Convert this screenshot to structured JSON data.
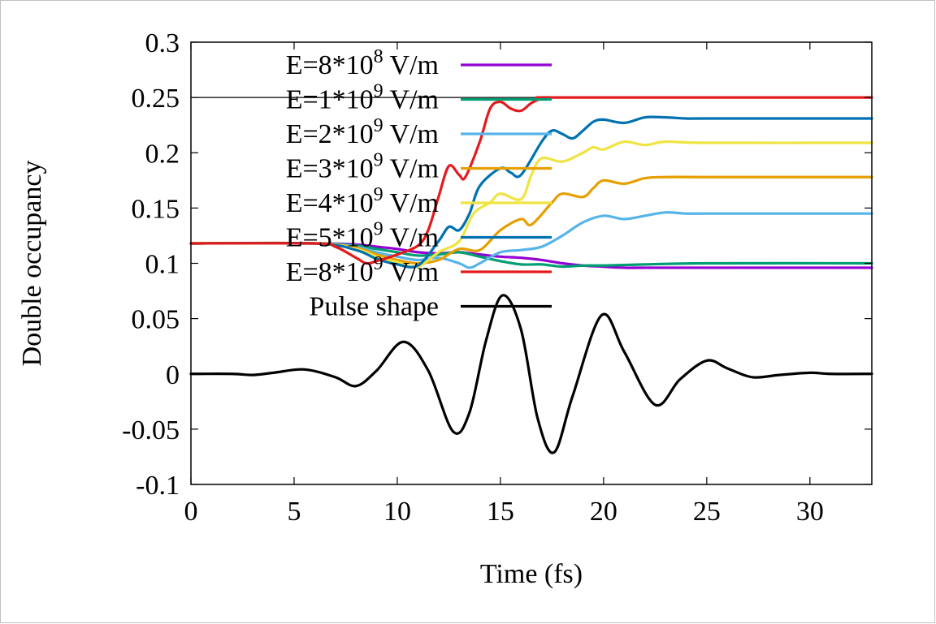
{
  "chart_data": {
    "type": "line",
    "xlabel": "Time (fs)",
    "ylabel": "Double occupancy",
    "xlim": [
      0,
      33
    ],
    "ylim": [
      -0.1,
      0.3
    ],
    "xticks": [
      0,
      5,
      10,
      15,
      20,
      25,
      30
    ],
    "yticks": [
      -0.1,
      -0.05,
      0,
      0.05,
      0.1,
      0.15,
      0.2,
      0.25,
      0.3
    ],
    "grid": false,
    "legend_position": "top-left inside",
    "reference_line": {
      "y": 0.25,
      "color": "#000000"
    },
    "series": [
      {
        "name": "E=8*10^8 V/m",
        "label_base": "E=8*10",
        "label_exp": "8",
        "label_unit": " V/m",
        "color": "#9400d3",
        "points": [
          [
            0,
            0.118
          ],
          [
            6,
            0.118
          ],
          [
            8,
            0.117
          ],
          [
            9,
            0.115
          ],
          [
            10,
            0.113
          ],
          [
            11,
            0.11
          ],
          [
            12,
            0.109
          ],
          [
            13,
            0.11
          ],
          [
            14,
            0.108
          ],
          [
            15,
            0.106
          ],
          [
            16,
            0.105
          ],
          [
            17,
            0.103
          ],
          [
            18,
            0.1
          ],
          [
            19,
            0.098
          ],
          [
            20,
            0.097
          ],
          [
            21,
            0.096
          ],
          [
            22,
            0.096
          ],
          [
            25,
            0.096
          ],
          [
            33,
            0.096
          ]
        ]
      },
      {
        "name": "E=1*10^9 V/m",
        "label_base": "E=1*10",
        "label_exp": "9",
        "label_unit": " V/m",
        "color": "#009e73",
        "points": [
          [
            0,
            0.118
          ],
          [
            6,
            0.118
          ],
          [
            8,
            0.116
          ],
          [
            9,
            0.113
          ],
          [
            10,
            0.11
          ],
          [
            11,
            0.107
          ],
          [
            12,
            0.108
          ],
          [
            13,
            0.11
          ],
          [
            14,
            0.106
          ],
          [
            15,
            0.102
          ],
          [
            16,
            0.099
          ],
          [
            17,
            0.099
          ],
          [
            18,
            0.097
          ],
          [
            19,
            0.098
          ],
          [
            20,
            0.098
          ],
          [
            22,
            0.099
          ],
          [
            25,
            0.1
          ],
          [
            33,
            0.1
          ]
        ]
      },
      {
        "name": "E=2*10^9 V/m",
        "label_base": "E=2*10",
        "label_exp": "9",
        "label_unit": " V/m",
        "color": "#56b4e9",
        "points": [
          [
            0,
            0.118
          ],
          [
            6,
            0.118
          ],
          [
            8,
            0.115
          ],
          [
            9,
            0.11
          ],
          [
            10,
            0.106
          ],
          [
            11,
            0.103
          ],
          [
            12,
            0.105
          ],
          [
            13,
            0.1
          ],
          [
            13.5,
            0.096
          ],
          [
            14,
            0.1
          ],
          [
            15,
            0.11
          ],
          [
            16,
            0.112
          ],
          [
            17,
            0.115
          ],
          [
            18,
            0.125
          ],
          [
            19,
            0.137
          ],
          [
            20,
            0.143
          ],
          [
            21,
            0.14
          ],
          [
            22,
            0.143
          ],
          [
            23,
            0.146
          ],
          [
            24,
            0.145
          ],
          [
            25,
            0.145
          ],
          [
            33,
            0.145
          ]
        ]
      },
      {
        "name": "E=3*10^9 V/m",
        "label_base": "E=3*10",
        "label_exp": "9",
        "label_unit": " V/m",
        "color": "#e69f00",
        "points": [
          [
            0,
            0.118
          ],
          [
            6,
            0.118
          ],
          [
            8,
            0.114
          ],
          [
            9,
            0.108
          ],
          [
            10,
            0.103
          ],
          [
            11,
            0.1
          ],
          [
            12,
            0.103
          ],
          [
            13,
            0.113
          ],
          [
            14,
            0.112
          ],
          [
            15,
            0.13
          ],
          [
            16,
            0.14
          ],
          [
            16.5,
            0.135
          ],
          [
            17.5,
            0.155
          ],
          [
            18,
            0.163
          ],
          [
            19,
            0.16
          ],
          [
            19.5,
            0.168
          ],
          [
            20,
            0.175
          ],
          [
            21,
            0.172
          ],
          [
            22,
            0.177
          ],
          [
            23,
            0.178
          ],
          [
            25,
            0.178
          ],
          [
            33,
            0.178
          ]
        ]
      },
      {
        "name": "E=4*10^9 V/m",
        "label_base": "E=4*10",
        "label_exp": "9",
        "label_unit": " V/m",
        "color": "#f0e442",
        "points": [
          [
            0,
            0.118
          ],
          [
            6,
            0.118
          ],
          [
            8,
            0.113
          ],
          [
            9,
            0.106
          ],
          [
            10,
            0.101
          ],
          [
            11,
            0.097
          ],
          [
            12,
            0.11
          ],
          [
            13,
            0.12
          ],
          [
            13.7,
            0.145
          ],
          [
            14.5,
            0.155
          ],
          [
            15,
            0.163
          ],
          [
            16,
            0.158
          ],
          [
            16.5,
            0.18
          ],
          [
            17,
            0.195
          ],
          [
            18,
            0.192
          ],
          [
            19,
            0.2
          ],
          [
            19.5,
            0.205
          ],
          [
            20,
            0.203
          ],
          [
            21,
            0.21
          ],
          [
            22,
            0.207
          ],
          [
            23,
            0.21
          ],
          [
            25,
            0.209
          ],
          [
            33,
            0.209
          ]
        ]
      },
      {
        "name": "E=5*10^9 V/m",
        "label_base": "E=5*10",
        "label_exp": "9",
        "label_unit": " V/m",
        "color": "#0072b2",
        "points": [
          [
            0,
            0.118
          ],
          [
            6,
            0.118
          ],
          [
            8,
            0.112
          ],
          [
            9,
            0.104
          ],
          [
            10,
            0.099
          ],
          [
            11,
            0.098
          ],
          [
            12,
            0.12
          ],
          [
            12.5,
            0.133
          ],
          [
            13,
            0.13
          ],
          [
            13.5,
            0.145
          ],
          [
            14,
            0.17
          ],
          [
            15,
            0.186
          ],
          [
            15.5,
            0.182
          ],
          [
            16,
            0.18
          ],
          [
            17,
            0.21
          ],
          [
            17.5,
            0.22
          ],
          [
            18,
            0.217
          ],
          [
            18.5,
            0.213
          ],
          [
            19,
            0.22
          ],
          [
            19.5,
            0.228
          ],
          [
            20,
            0.23
          ],
          [
            21,
            0.227
          ],
          [
            22,
            0.232
          ],
          [
            23,
            0.232
          ],
          [
            24,
            0.231
          ],
          [
            25,
            0.231
          ],
          [
            33,
            0.231
          ]
        ]
      },
      {
        "name": "E=8*10^9 V/m",
        "label_base": "E=8*10",
        "label_exp": "9",
        "label_unit": " V/m",
        "color": "#e41a1c",
        "points": [
          [
            0,
            0.118
          ],
          [
            6,
            0.118
          ],
          [
            7,
            0.115
          ],
          [
            8,
            0.105
          ],
          [
            8.5,
            0.1
          ],
          [
            9,
            0.102
          ],
          [
            10,
            0.108
          ],
          [
            11,
            0.116
          ],
          [
            11.5,
            0.13
          ],
          [
            12,
            0.16
          ],
          [
            12.5,
            0.188
          ],
          [
            13,
            0.18
          ],
          [
            13.3,
            0.178
          ],
          [
            14,
            0.21
          ],
          [
            14.5,
            0.24
          ],
          [
            15,
            0.246
          ],
          [
            15.5,
            0.24
          ],
          [
            16,
            0.238
          ],
          [
            16.5,
            0.245
          ],
          [
            17,
            0.249
          ],
          [
            17.5,
            0.25
          ],
          [
            18,
            0.25
          ],
          [
            33,
            0.25
          ]
        ]
      },
      {
        "name": "Pulse shape",
        "label_base": "Pulse shape",
        "label_exp": "",
        "label_unit": "",
        "color": "#000000",
        "points": [
          [
            0,
            0.0
          ],
          [
            2,
            0.0
          ],
          [
            3,
            -0.001
          ],
          [
            4,
            0.001
          ],
          [
            5.5,
            0.004
          ],
          [
            7,
            -0.003
          ],
          [
            8,
            -0.011
          ],
          [
            9,
            0.003
          ],
          [
            10.3,
            0.029
          ],
          [
            11.5,
            0.003
          ],
          [
            12.7,
            -0.052
          ],
          [
            13.5,
            -0.035
          ],
          [
            14.3,
            0.03
          ],
          [
            15.1,
            0.071
          ],
          [
            16,
            0.04
          ],
          [
            16.8,
            -0.04
          ],
          [
            17.6,
            -0.071
          ],
          [
            18.5,
            -0.02
          ],
          [
            19.9,
            0.053
          ],
          [
            21,
            0.02
          ],
          [
            22.5,
            -0.028
          ],
          [
            23.7,
            -0.005
          ],
          [
            25,
            0.012
          ],
          [
            26,
            0.005
          ],
          [
            27.2,
            -0.003
          ],
          [
            28.5,
            -0.001
          ],
          [
            30,
            0.001
          ],
          [
            31,
            0.0
          ],
          [
            33,
            0.0
          ]
        ]
      }
    ]
  }
}
